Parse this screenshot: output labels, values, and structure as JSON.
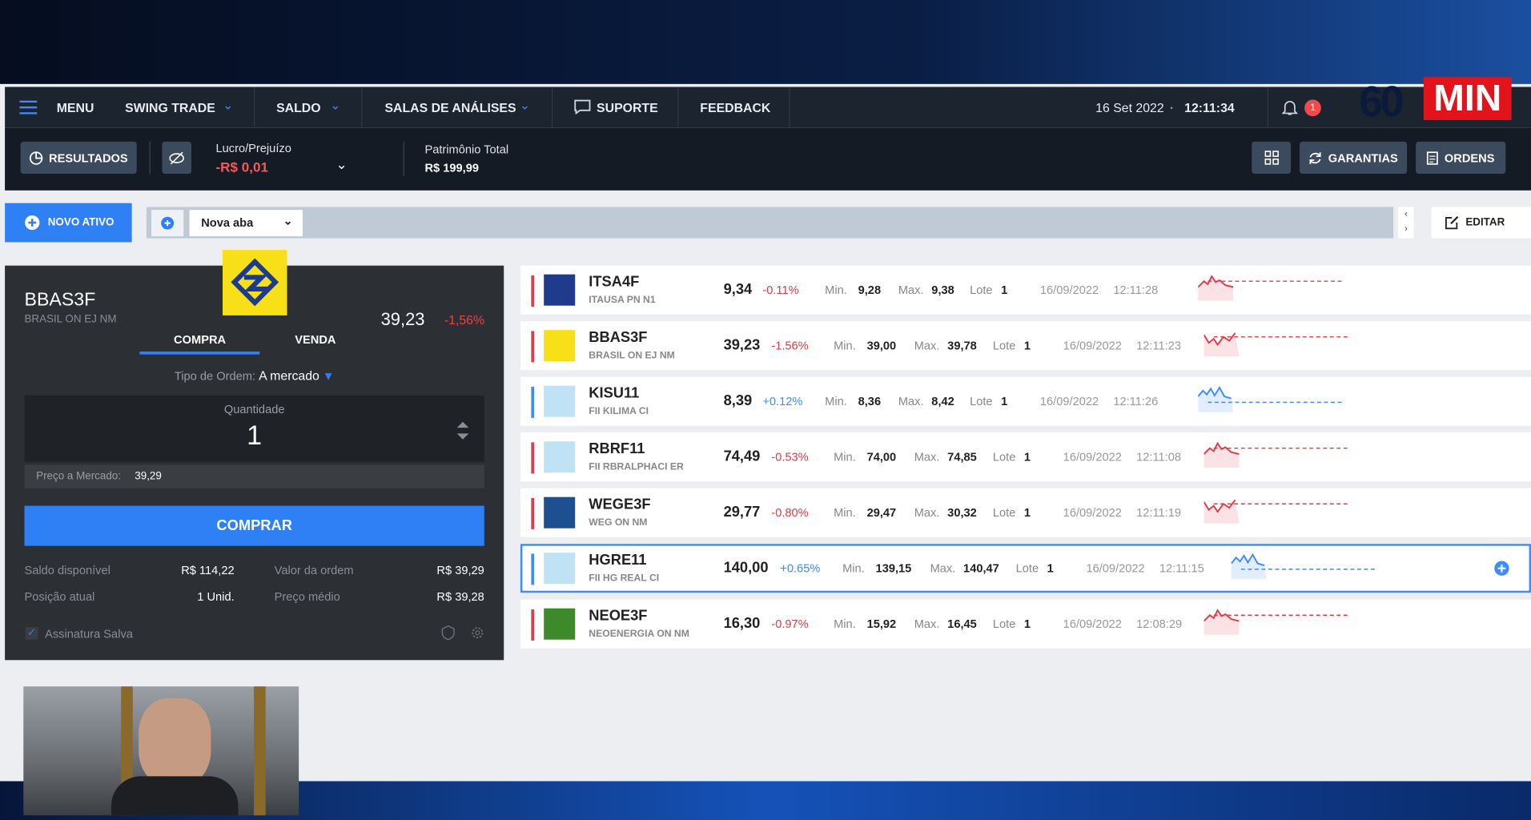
{
  "nav": {
    "menu": "MENU",
    "mode": "SWING TRADE",
    "saldo": "SALDO",
    "salas": "SALAS DE ANÁLISES",
    "suporte": "SUPORTE",
    "feedback": "FEEDBACK",
    "date": "16 Set 2022",
    "time": "12:11:34",
    "notifications": "1",
    "logo_number": "60",
    "logo_text": "MIN"
  },
  "toolbar": {
    "results": "RESULTADOS",
    "pl_label": "Lucro/Prejuízo",
    "pl_value": "-R$ 0,01",
    "equity_label": "Patrimônio Total",
    "equity_value": "R$ 199,99",
    "guarantees": "GARANTIAS",
    "orders": "ORDENS"
  },
  "tabs": {
    "new_asset": "NOVO ATIVO",
    "tab": "Nova aba",
    "edit": "EDITAR"
  },
  "order_panel": {
    "ticker": "BBAS3F",
    "name": "BRASIL ON EJ NM",
    "price": "39,23",
    "change": "-1,56%",
    "buy_tab": "COMPRA",
    "sell_tab": "VENDA",
    "order_type_label": "Tipo de Ordem:",
    "order_type": "A mercado",
    "quantity_label": "Quantidade",
    "quantity": "1",
    "market_price_label": "Preço a Mercado:",
    "market_price": "39,29",
    "buy_button": "COMPRAR",
    "info": [
      {
        "label": "Saldo disponível",
        "value": "R$ 114,22"
      },
      {
        "label": "Valor da ordem",
        "value": "R$ 39,29"
      },
      {
        "label": "Posição atual",
        "value": "1 Unid."
      },
      {
        "label": "Preço médio",
        "value": "R$ 39,28"
      }
    ],
    "signature": "Assinatura Salva"
  },
  "watchlist": {
    "labels": {
      "min": "Min.",
      "max": "Max.",
      "lot": "Lote"
    },
    "selected_row": 5,
    "rows": [
      {
        "ticker": "ITSA4F",
        "name": "ITAUSA PN N1",
        "price": "9,34",
        "change": "-0.11%",
        "min": "9,28",
        "max": "9,38",
        "lot": "1",
        "date": "16/09/2022",
        "time": "12:11:28",
        "logo_color": "#1f3b8c"
      },
      {
        "ticker": "BBAS3F",
        "name": "BRASIL ON EJ NM",
        "price": "39,23",
        "change": "-1.56%",
        "min": "39,00",
        "max": "39,78",
        "lot": "1",
        "date": "16/09/2022",
        "time": "12:11:23",
        "logo_color": "#f7e018"
      },
      {
        "ticker": "KISU11",
        "name": "FII KILIMA CI",
        "price": "8,39",
        "change": "+0.12%",
        "min": "8,36",
        "max": "8,42",
        "lot": "1",
        "date": "16/09/2022",
        "time": "12:11:26",
        "logo_color": "#bfe3f5"
      },
      {
        "ticker": "RBRF11",
        "name": "FII RBRALPHACI ER",
        "price": "74,49",
        "change": "-0.53%",
        "min": "74,00",
        "max": "74,85",
        "lot": "1",
        "date": "16/09/2022",
        "time": "12:11:08",
        "logo_color": "#bfe3f5"
      },
      {
        "ticker": "WEGE3F",
        "name": "WEG ON NM",
        "price": "29,77",
        "change": "-0.80%",
        "min": "29,47",
        "max": "30,32",
        "lot": "1",
        "date": "16/09/2022",
        "time": "12:11:19",
        "logo_color": "#1d4f91"
      },
      {
        "ticker": "HGRE11",
        "name": "FII HG REAL CI",
        "price": "140,00",
        "change": "+0.65%",
        "min": "139,15",
        "max": "140,47",
        "lot": "1",
        "date": "16/09/2022",
        "time": "12:11:15",
        "logo_color": "#bfe3f5"
      },
      {
        "ticker": "NEOE3F",
        "name": "NEOENERGIA ON NM",
        "price": "16,30",
        "change": "-0.97%",
        "min": "15,92",
        "max": "16,45",
        "lot": "1",
        "date": "16/09/2022",
        "time": "12:08:29",
        "logo_color": "#3e8a2a"
      }
    ]
  }
}
